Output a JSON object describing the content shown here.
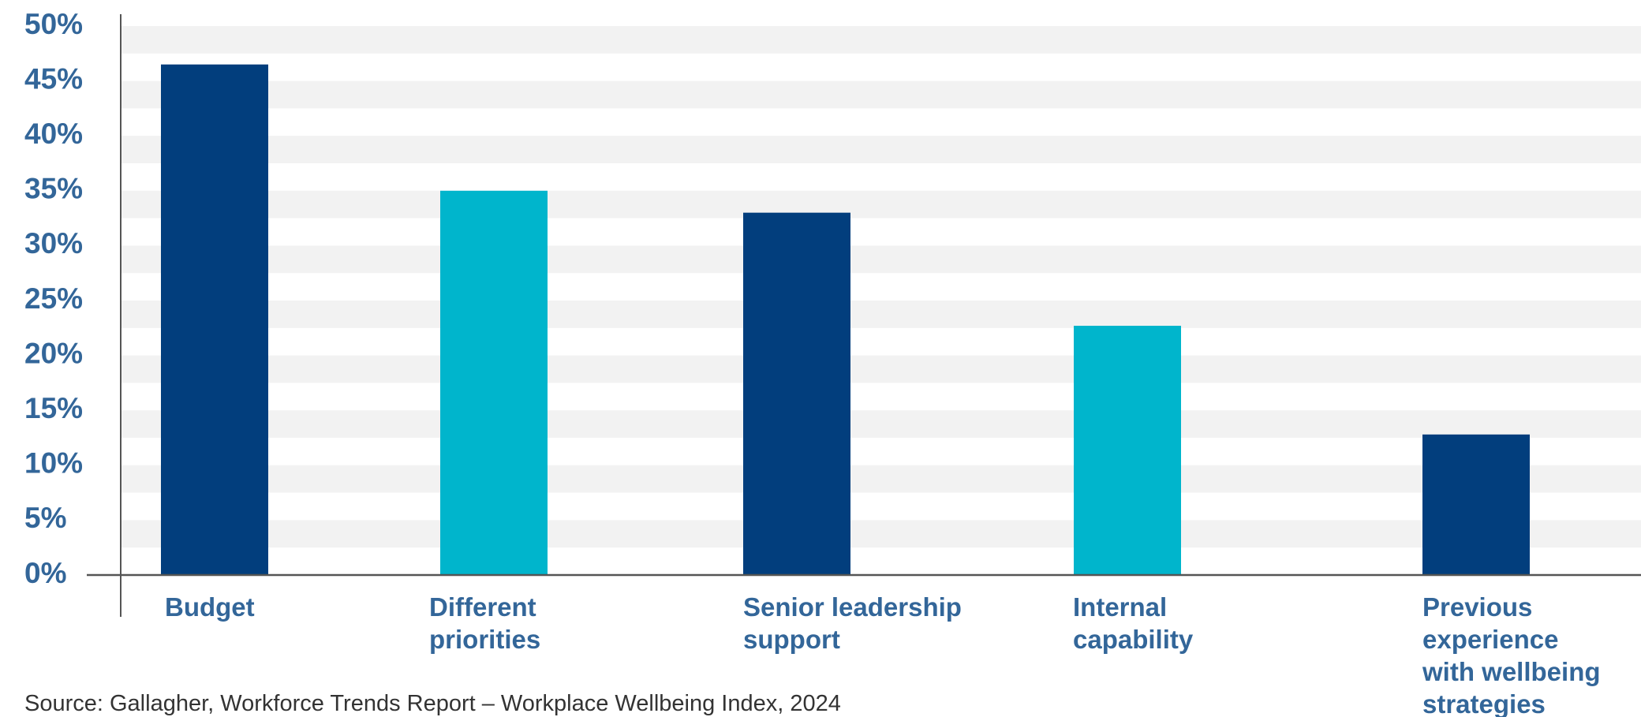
{
  "chart_data": {
    "type": "bar",
    "categories": [
      "Budget",
      "Different priorities",
      "Senior leadership support",
      "Internal capability",
      "Previous experience with wellbeing strategies"
    ],
    "category_lines": [
      [
        "Budget"
      ],
      [
        "Different",
        "priorities"
      ],
      [
        "Senior leadership",
        "support"
      ],
      [
        "Internal",
        "capability"
      ],
      [
        "Previous",
        "experience",
        "with wellbeing",
        "strategies"
      ]
    ],
    "values": [
      46.5,
      35,
      33,
      22.7,
      12.8
    ],
    "ylim": [
      0,
      50
    ],
    "yticks": [
      "0%",
      "5%",
      "10%",
      "15%",
      "20%",
      "25%",
      "30%",
      "35%",
      "40%",
      "45%",
      "50%"
    ],
    "grid": "alternating horizontal bands",
    "colors": {
      "dark": "#023E7D",
      "light": "#00B5CC",
      "band": "#F2F2F2",
      "axis": "#555555",
      "label": "#336699"
    },
    "bar_colors": [
      "dark",
      "light",
      "dark",
      "light",
      "dark"
    ],
    "source": "Source: Gallagher, Workforce Trends Report – Workplace Wellbeing Index, 2024"
  }
}
